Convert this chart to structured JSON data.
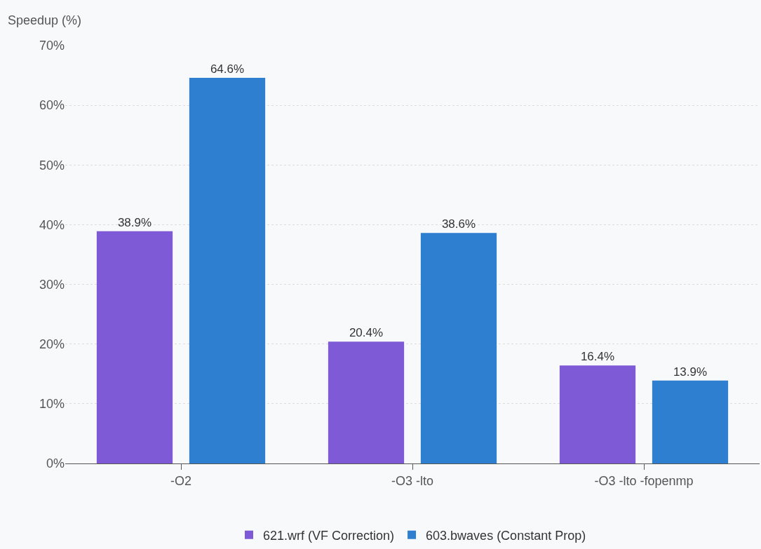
{
  "chart_data": {
    "type": "bar",
    "ylabel": "Speedup (%)",
    "categories": [
      "-O2",
      "-O3 -lto",
      "-O3 -lto -fopenmp"
    ],
    "series": [
      {
        "name": "621.wrf (VF Correction)",
        "color": "#7f5ad6",
        "values": [
          38.9,
          20.4,
          16.4
        ],
        "value_labels": [
          "38.9%",
          "20.4%",
          "16.4%"
        ]
      },
      {
        "name": "603.bwaves (Constant Prop)",
        "color": "#2e7fd0",
        "values": [
          64.6,
          38.6,
          13.9
        ],
        "value_labels": [
          "64.6%",
          "38.6%",
          "13.9%"
        ]
      }
    ],
    "ylim": [
      0,
      70
    ],
    "yticks": [
      {
        "value": 0,
        "label": "0%"
      },
      {
        "value": 10,
        "label": "10%"
      },
      {
        "value": 20,
        "label": "20%"
      },
      {
        "value": 30,
        "label": "30%"
      },
      {
        "value": 40,
        "label": "40%"
      },
      {
        "value": 50,
        "label": "50%"
      },
      {
        "value": 60,
        "label": "60%"
      },
      {
        "value": 70,
        "label": "70%"
      }
    ],
    "grid": "y",
    "legend": "bottom"
  }
}
